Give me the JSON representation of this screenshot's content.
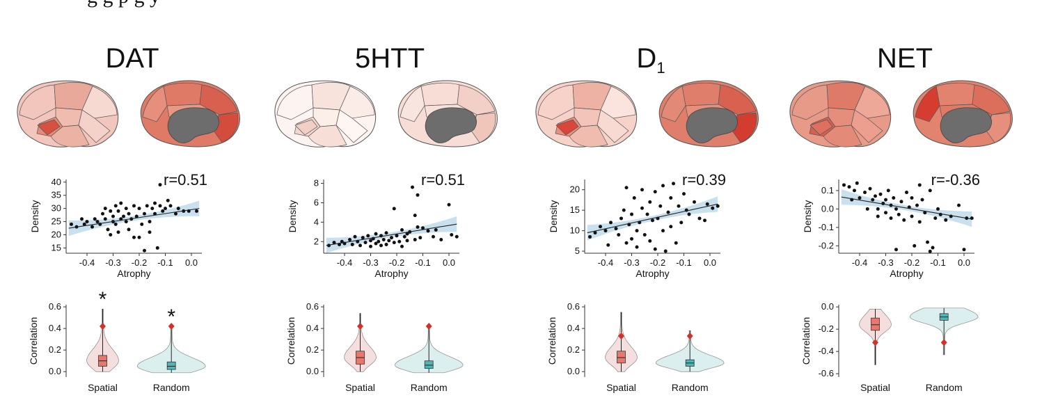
{
  "caption_fragment": "g                              g           p      g           y",
  "colors": {
    "spatial_fill": "#f4dede",
    "spatial_box": "#e8786e",
    "random_fill": "#dcefef",
    "random_box": "#4fb6b8",
    "marker": "#d2312a",
    "ci_band": "#bcd8ea",
    "brain_medial_core": "#6d6d6d"
  },
  "chart_data": [
    {
      "type": "scatter",
      "id": "dat",
      "title": "DAT",
      "title_sub": "",
      "annotation": "r=0.51",
      "xlabel": "Atrophy",
      "ylabel": "Density",
      "xlim": [
        -0.48,
        0.04
      ],
      "ylim": [
        13,
        41
      ],
      "xticks": [
        -0.4,
        -0.3,
        -0.2,
        -0.1,
        0.0
      ],
      "xtick_labels": [
        "-0.4",
        "-0.3",
        "-0.2",
        "-0.1",
        "0.0"
      ],
      "yticks": [
        15,
        20,
        25,
        30,
        35,
        40
      ],
      "ytick_labels": [
        "15",
        "20",
        "25",
        "30",
        "35",
        "40"
      ],
      "fit": {
        "x": [
          -0.47,
          0.03
        ],
        "y": [
          22.5,
          30.0
        ]
      },
      "points": [
        [
          -0.46,
          24
        ],
        [
          -0.44,
          23
        ],
        [
          -0.42,
          26
        ],
        [
          -0.41,
          24
        ],
        [
          -0.4,
          25
        ],
        [
          -0.38,
          23
        ],
        [
          -0.37,
          26
        ],
        [
          -0.36,
          25
        ],
        [
          -0.35,
          24
        ],
        [
          -0.34,
          28
        ],
        [
          -0.33,
          30
        ],
        [
          -0.33,
          26
        ],
        [
          -0.32,
          22
        ],
        [
          -0.31,
          20
        ],
        [
          -0.31,
          29
        ],
        [
          -0.3,
          25
        ],
        [
          -0.3,
          27
        ],
        [
          -0.29,
          31
        ],
        [
          -0.29,
          24
        ],
        [
          -0.28,
          21
        ],
        [
          -0.28,
          29
        ],
        [
          -0.27,
          26
        ],
        [
          -0.27,
          32
        ],
        [
          -0.26,
          27
        ],
        [
          -0.25,
          25
        ],
        [
          -0.25,
          30
        ],
        [
          -0.24,
          28
        ],
        [
          -0.24,
          22
        ],
        [
          -0.23,
          26
        ],
        [
          -0.22,
          31
        ],
        [
          -0.22,
          19
        ],
        [
          -0.21,
          27
        ],
        [
          -0.2,
          30
        ],
        [
          -0.2,
          19
        ],
        [
          -0.19,
          24
        ],
        [
          -0.18,
          14
        ],
        [
          -0.18,
          28
        ],
        [
          -0.17,
          31
        ],
        [
          -0.16,
          25
        ],
        [
          -0.16,
          21
        ],
        [
          -0.15,
          30
        ],
        [
          -0.14,
          32
        ],
        [
          -0.14,
          28
        ],
        [
          -0.13,
          15
        ],
        [
          -0.12,
          39
        ],
        [
          -0.12,
          31
        ],
        [
          -0.11,
          29
        ],
        [
          -0.1,
          30
        ],
        [
          -0.09,
          33
        ],
        [
          -0.08,
          31
        ],
        [
          -0.06,
          28
        ],
        [
          -0.05,
          30
        ],
        [
          -0.03,
          29
        ],
        [
          -0.01,
          29
        ],
        [
          0.02,
          29
        ]
      ]
    },
    {
      "type": "violin",
      "id": "dat",
      "ylabel": "Correlation",
      "categories": [
        "Spatial",
        "Random"
      ],
      "ylim": [
        -0.05,
        0.62
      ],
      "yticks": [
        0.0,
        0.2,
        0.4,
        0.6
      ],
      "ytick_labels": [
        "0.0",
        "0.2",
        "0.4",
        "0.6"
      ],
      "significance": [
        "*",
        "*"
      ],
      "series": [
        {
          "name": "Spatial",
          "median": 0.1,
          "q1": 0.05,
          "q3": 0.15,
          "whisker_low": 0.0,
          "whisker_high": 0.58,
          "marker": 0.42
        },
        {
          "name": "Random",
          "median": 0.05,
          "q1": 0.02,
          "q3": 0.09,
          "whisker_low": -0.01,
          "whisker_high": 0.42,
          "marker": 0.42
        }
      ]
    },
    {
      "type": "scatter",
      "id": "5htt",
      "title": "5HTT",
      "title_sub": "",
      "annotation": "r=0.51",
      "xlabel": "Atrophy",
      "ylabel": "Density",
      "xlim": [
        -0.48,
        0.04
      ],
      "ylim": [
        0.8,
        8.4
      ],
      "xticks": [
        -0.4,
        -0.3,
        -0.2,
        -0.1,
        0.0
      ],
      "xtick_labels": [
        "-0.4",
        "-0.3",
        "-0.2",
        "-0.1",
        "0.0"
      ],
      "yticks": [
        2,
        4,
        6,
        8
      ],
      "ytick_labels": [
        "2",
        "4",
        "6",
        "8"
      ],
      "fit": {
        "x": [
          -0.47,
          0.03
        ],
        "y": [
          1.6,
          3.8
        ]
      },
      "points": [
        [
          -0.46,
          1.6
        ],
        [
          -0.44,
          1.9
        ],
        [
          -0.42,
          1.7
        ],
        [
          -0.41,
          2.0
        ],
        [
          -0.4,
          1.8
        ],
        [
          -0.38,
          2.2
        ],
        [
          -0.37,
          1.7
        ],
        [
          -0.36,
          2.5
        ],
        [
          -0.35,
          2.0
        ],
        [
          -0.34,
          1.6
        ],
        [
          -0.33,
          2.4
        ],
        [
          -0.32,
          1.9
        ],
        [
          -0.31,
          2.6
        ],
        [
          -0.3,
          2.1
        ],
        [
          -0.3,
          1.5
        ],
        [
          -0.29,
          2.3
        ],
        [
          -0.28,
          2.8
        ],
        [
          -0.28,
          1.8
        ],
        [
          -0.27,
          2.0
        ],
        [
          -0.26,
          2.6
        ],
        [
          -0.26,
          1.6
        ],
        [
          -0.25,
          2.2
        ],
        [
          -0.24,
          2.9
        ],
        [
          -0.24,
          1.7
        ],
        [
          -0.23,
          2.1
        ],
        [
          -0.22,
          2.4
        ],
        [
          -0.21,
          5.4
        ],
        [
          -0.21,
          1.9
        ],
        [
          -0.2,
          2.6
        ],
        [
          -0.19,
          2.0
        ],
        [
          -0.18,
          3.2
        ],
        [
          -0.18,
          1.5
        ],
        [
          -0.17,
          2.5
        ],
        [
          -0.16,
          2.1
        ],
        [
          -0.16,
          2.8
        ],
        [
          -0.15,
          3.0
        ],
        [
          -0.14,
          7.6
        ],
        [
          -0.13,
          2.2
        ],
        [
          -0.13,
          4.7
        ],
        [
          -0.12,
          6.8
        ],
        [
          -0.12,
          3.5
        ],
        [
          -0.11,
          2.4
        ],
        [
          -0.1,
          3.4
        ],
        [
          -0.08,
          3.1
        ],
        [
          -0.06,
          2.5
        ],
        [
          -0.05,
          3.2
        ],
        [
          -0.03,
          2.2
        ],
        [
          0.0,
          5.8
        ],
        [
          0.01,
          2.7
        ],
        [
          0.03,
          2.5
        ]
      ]
    },
    {
      "type": "violin",
      "id": "5htt",
      "ylabel": "Correlation",
      "categories": [
        "Spatial",
        "Random"
      ],
      "ylim": [
        -0.05,
        0.62
      ],
      "yticks": [
        0.0,
        0.2,
        0.4,
        0.6
      ],
      "ytick_labels": [
        "0.0",
        "0.2",
        "0.4",
        "0.6"
      ],
      "significance": [
        "",
        ""
      ],
      "series": [
        {
          "name": "Spatial",
          "median": 0.13,
          "q1": 0.07,
          "q3": 0.19,
          "whisker_low": 0.0,
          "whisker_high": 0.54,
          "marker": 0.42
        },
        {
          "name": "Random",
          "median": 0.06,
          "q1": 0.03,
          "q3": 0.1,
          "whisker_low": -0.01,
          "whisker_high": 0.42,
          "marker": 0.42
        }
      ]
    },
    {
      "type": "scatter",
      "id": "d1",
      "title": "D",
      "title_sub": "1",
      "annotation": "r=0.39",
      "xlabel": "Atrophy",
      "ylabel": "Density",
      "xlim": [
        -0.48,
        0.04
      ],
      "ylim": [
        4.5,
        22.5
      ],
      "xticks": [
        -0.4,
        -0.3,
        -0.2,
        -0.1,
        0.0
      ],
      "xtick_labels": [
        "-0.4",
        "-0.3",
        "-0.2",
        "-0.1",
        "0.0"
      ],
      "yticks": [
        5,
        10,
        15,
        20
      ],
      "ytick_labels": [
        "5",
        "10",
        "15",
        "20"
      ],
      "fit": {
        "x": [
          -0.47,
          0.03
        ],
        "y": [
          9.5,
          16.5
        ]
      },
      "points": [
        [
          -0.46,
          8.5
        ],
        [
          -0.44,
          9.5
        ],
        [
          -0.42,
          11
        ],
        [
          -0.4,
          10
        ],
        [
          -0.39,
          6.5
        ],
        [
          -0.38,
          12
        ],
        [
          -0.36,
          10.5
        ],
        [
          -0.35,
          9
        ],
        [
          -0.34,
          13
        ],
        [
          -0.33,
          15
        ],
        [
          -0.32,
          20.5
        ],
        [
          -0.32,
          7
        ],
        [
          -0.31,
          11.5
        ],
        [
          -0.3,
          8
        ],
        [
          -0.3,
          14
        ],
        [
          -0.29,
          18
        ],
        [
          -0.28,
          10
        ],
        [
          -0.28,
          6
        ],
        [
          -0.27,
          12
        ],
        [
          -0.26,
          15.5
        ],
        [
          -0.26,
          20
        ],
        [
          -0.25,
          9
        ],
        [
          -0.24,
          14
        ],
        [
          -0.23,
          7.5
        ],
        [
          -0.23,
          17
        ],
        [
          -0.22,
          12.5
        ],
        [
          -0.21,
          5.5
        ],
        [
          -0.21,
          19.5
        ],
        [
          -0.2,
          13
        ],
        [
          -0.19,
          16
        ],
        [
          -0.18,
          21
        ],
        [
          -0.18,
          10
        ],
        [
          -0.17,
          5
        ],
        [
          -0.16,
          14.5
        ],
        [
          -0.15,
          18
        ],
        [
          -0.15,
          11
        ],
        [
          -0.14,
          21.5
        ],
        [
          -0.13,
          7
        ],
        [
          -0.12,
          16
        ],
        [
          -0.11,
          12
        ],
        [
          -0.1,
          19
        ],
        [
          -0.09,
          15
        ],
        [
          -0.08,
          14
        ],
        [
          -0.06,
          17
        ],
        [
          -0.04,
          13
        ],
        [
          -0.02,
          12.5
        ],
        [
          -0.01,
          16.5
        ],
        [
          0.01,
          15.5
        ],
        [
          0.03,
          16
        ]
      ]
    },
    {
      "type": "violin",
      "id": "d1",
      "ylabel": "Correlation",
      "categories": [
        "Spatial",
        "Random"
      ],
      "ylim": [
        -0.05,
        0.62
      ],
      "yticks": [
        0.0,
        0.2,
        0.4,
        0.6
      ],
      "ytick_labels": [
        "0.0",
        "0.2",
        "0.4",
        "0.6"
      ],
      "significance": [
        "",
        ""
      ],
      "series": [
        {
          "name": "Spatial",
          "median": 0.13,
          "q1": 0.08,
          "q3": 0.19,
          "whisker_low": 0.0,
          "whisker_high": 0.55,
          "marker": 0.33
        },
        {
          "name": "Random",
          "median": 0.08,
          "q1": 0.05,
          "q3": 0.11,
          "whisker_low": 0.0,
          "whisker_high": 0.38,
          "marker": 0.33
        }
      ]
    },
    {
      "type": "scatter",
      "id": "net",
      "title": "NET",
      "title_sub": "",
      "annotation": "r=-0.36",
      "xlabel": "Atrophy",
      "ylabel": "Density",
      "xlim": [
        -0.48,
        0.04
      ],
      "ylim": [
        -0.24,
        0.16
      ],
      "xticks": [
        -0.4,
        -0.3,
        -0.2,
        -0.1,
        0.0
      ],
      "xtick_labels": [
        "-0.4",
        "-0.3",
        "-0.2",
        "-0.1",
        "0.0"
      ],
      "yticks": [
        -0.2,
        -0.1,
        0.0,
        0.1
      ],
      "ytick_labels": [
        "-0.2",
        "-0.1",
        "0.0",
        "0.1"
      ],
      "fit": {
        "x": [
          -0.47,
          0.03
        ],
        "y": [
          0.065,
          -0.055
        ]
      },
      "points": [
        [
          -0.46,
          0.13
        ],
        [
          -0.44,
          0.12
        ],
        [
          -0.43,
          0.05
        ],
        [
          -0.42,
          0.1
        ],
        [
          -0.41,
          0.14
        ],
        [
          -0.4,
          0.06
        ],
        [
          -0.38,
          0.09
        ],
        [
          -0.37,
          0.0
        ],
        [
          -0.36,
          0.11
        ],
        [
          -0.35,
          0.05
        ],
        [
          -0.34,
          0.07
        ],
        [
          -0.33,
          0.0
        ],
        [
          -0.33,
          -0.04
        ],
        [
          -0.32,
          0.08
        ],
        [
          -0.31,
          0.03
        ],
        [
          -0.3,
          -0.02
        ],
        [
          -0.3,
          0.05
        ],
        [
          -0.29,
          0.1
        ],
        [
          -0.28,
          -0.05
        ],
        [
          -0.28,
          0.02
        ],
        [
          -0.27,
          0.06
        ],
        [
          -0.26,
          -0.22
        ],
        [
          -0.26,
          0.0
        ],
        [
          -0.25,
          -0.03
        ],
        [
          -0.24,
          0.04
        ],
        [
          -0.23,
          -0.06
        ],
        [
          -0.22,
          0.09
        ],
        [
          -0.21,
          0.01
        ],
        [
          -0.2,
          -0.04
        ],
        [
          -0.2,
          0.06
        ],
        [
          -0.19,
          -0.2
        ],
        [
          -0.18,
          0.02
        ],
        [
          -0.17,
          0.13
        ],
        [
          -0.17,
          -0.07
        ],
        [
          -0.16,
          0.05
        ],
        [
          -0.15,
          -0.02
        ],
        [
          -0.14,
          -0.18
        ],
        [
          -0.13,
          0.1
        ],
        [
          -0.13,
          -0.23
        ],
        [
          -0.12,
          -0.21
        ],
        [
          -0.11,
          -0.05
        ],
        [
          -0.1,
          0.0
        ],
        [
          -0.09,
          -0.03
        ],
        [
          -0.07,
          -0.06
        ],
        [
          -0.05,
          -0.04
        ],
        [
          -0.02,
          0.02
        ],
        [
          0.0,
          -0.22
        ],
        [
          0.01,
          -0.05
        ],
        [
          0.03,
          -0.05
        ]
      ]
    },
    {
      "type": "violin",
      "id": "net",
      "ylabel": "Correlation",
      "categories": [
        "Spatial",
        "Random"
      ],
      "ylim": [
        -0.63,
        0.02
      ],
      "yticks": [
        0.0,
        -0.2,
        -0.4,
        -0.6
      ],
      "ytick_labels": [
        "0.0",
        "-0.2",
        "-0.4",
        "-0.6"
      ],
      "significance": [
        "",
        ""
      ],
      "series": [
        {
          "name": "Spatial",
          "median": -0.16,
          "q1": -0.21,
          "q3": -0.1,
          "whisker_low": -0.52,
          "whisker_high": -0.02,
          "marker": -0.32
        },
        {
          "name": "Random",
          "median": -0.09,
          "q1": -0.12,
          "q3": -0.06,
          "whisker_low": -0.43,
          "whisker_high": -0.01,
          "marker": -0.32
        }
      ]
    }
  ]
}
